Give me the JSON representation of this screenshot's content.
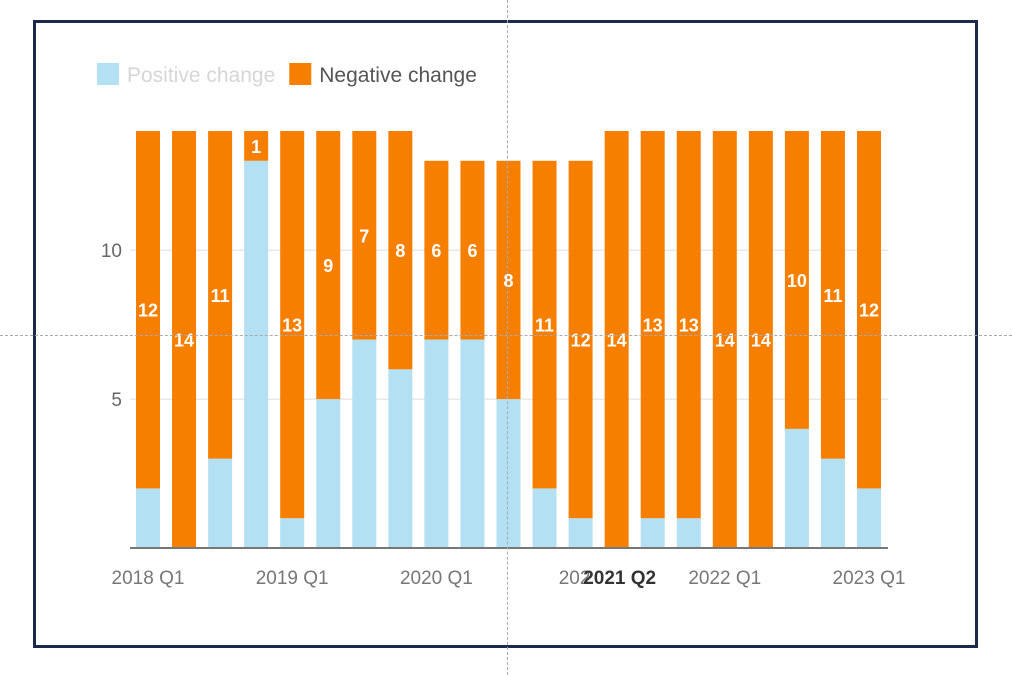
{
  "chart_data": {
    "type": "bar",
    "stacked": true,
    "legend": {
      "placement": "top-left",
      "items": [
        {
          "name": "Positive change",
          "color": "#b3e0f2",
          "dimmed": true
        },
        {
          "name": "Negative change",
          "color": "#f77f00",
          "dimmed": false
        }
      ]
    },
    "categories": [
      "2018 Q1",
      "2018 Q2",
      "2018 Q3",
      "2018 Q4",
      "2019 Q1",
      "2019 Q2",
      "2019 Q3",
      "2019 Q4",
      "2020 Q1",
      "2020 Q2",
      "2020 Q3",
      "2020 Q4",
      "2021 Q1",
      "2021 Q2",
      "2021 Q3",
      "2021 Q4",
      "2022 Q1",
      "2022 Q2",
      "2022 Q3",
      "2022 Q4",
      "2023 Q1"
    ],
    "x_tick_labels": [
      {
        "category": "2018 Q1",
        "label": "2018 Q1"
      },
      {
        "category": "2019 Q1",
        "label": "2019 Q1"
      },
      {
        "category": "2020 Q1",
        "label": "2020 Q1"
      },
      {
        "category": "2021 Q1",
        "label": "202"
      },
      {
        "category": "2021 Q2",
        "label": "2021 Q2",
        "highlighted": true
      },
      {
        "category": "2022 Q1",
        "label": "2022 Q1"
      },
      {
        "category": "2023 Q1",
        "label": "2023 Q1"
      }
    ],
    "series": [
      {
        "name": "Positive change",
        "values": [
          2,
          0,
          3,
          13,
          1,
          5,
          7,
          6,
          7,
          7,
          5,
          2,
          1,
          0,
          1,
          1,
          0,
          0,
          4,
          3,
          2
        ]
      },
      {
        "name": "Negative change",
        "values": [
          12,
          14,
          11,
          1,
          13,
          9,
          7,
          8,
          6,
          6,
          8,
          11,
          12,
          14,
          13,
          13,
          14,
          14,
          10,
          11,
          12
        ]
      }
    ],
    "ylim": [
      0,
      14
    ],
    "y_ticks": [
      5,
      10
    ],
    "grid": true,
    "xlabel": "",
    "ylabel": ""
  }
}
